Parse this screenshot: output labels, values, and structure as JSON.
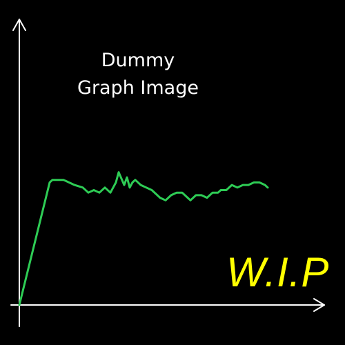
{
  "chart_data": {
    "type": "line",
    "title": [
      "Dummy",
      "Graph Image"
    ],
    "annotation": "W.I.P",
    "xlabel": "",
    "ylabel": "",
    "xlim": [
      0,
      100
    ],
    "ylim": [
      0,
      100
    ],
    "grid": false,
    "axes_with_arrows": true,
    "series": [
      {
        "color": "#2ecc55",
        "points": [
          [
            0,
            0
          ],
          [
            11,
            48
          ],
          [
            12,
            49
          ],
          [
            16,
            49
          ],
          [
            18,
            48
          ],
          [
            20,
            47
          ],
          [
            23,
            46
          ],
          [
            25,
            44
          ],
          [
            27,
            45
          ],
          [
            29,
            44
          ],
          [
            31,
            46
          ],
          [
            33,
            44
          ],
          [
            34,
            46
          ],
          [
            35,
            48
          ],
          [
            36,
            52
          ],
          [
            38,
            47
          ],
          [
            39,
            50
          ],
          [
            40,
            46
          ],
          [
            41,
            48
          ],
          [
            42,
            49
          ],
          [
            44,
            47
          ],
          [
            46,
            46
          ],
          [
            48,
            45
          ],
          [
            50,
            43
          ],
          [
            51,
            42
          ],
          [
            53,
            41
          ],
          [
            55,
            43
          ],
          [
            57,
            44
          ],
          [
            59,
            44
          ],
          [
            61,
            42
          ],
          [
            62,
            41
          ],
          [
            64,
            43
          ],
          [
            66,
            43
          ],
          [
            68,
            42
          ],
          [
            70,
            44
          ],
          [
            72,
            44
          ],
          [
            73,
            45
          ],
          [
            75,
            45
          ],
          [
            77,
            47
          ],
          [
            79,
            46
          ],
          [
            81,
            47
          ],
          [
            83,
            47
          ],
          [
            85,
            48
          ],
          [
            87,
            48
          ],
          [
            89,
            47
          ],
          [
            90,
            46
          ]
        ]
      }
    ]
  },
  "colors": {
    "background": "#000000",
    "axes": "#ffffff",
    "line": "#2ecc55",
    "title": "#ffffff",
    "annotation": "#ffff00"
  }
}
